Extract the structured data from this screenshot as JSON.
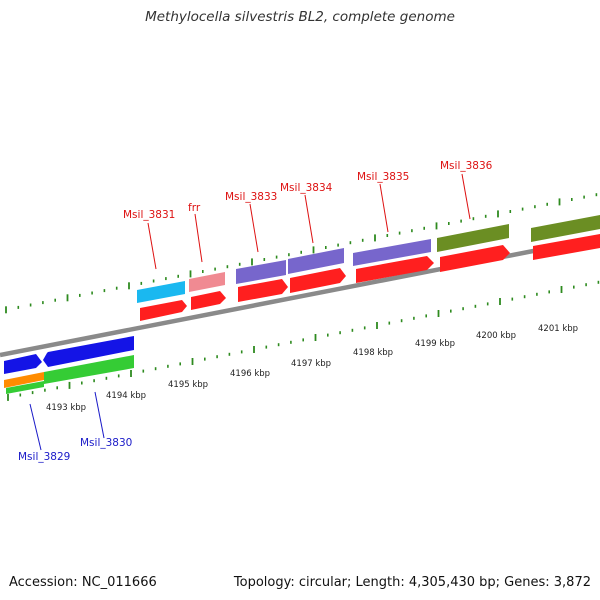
{
  "title": "Methylocella silvestris BL2, complete genome",
  "footer": {
    "accession": "Accession: NC_011666",
    "stats": "Topology: circular; Length: 4,305,430 bp; Genes: 3,872"
  },
  "colors": {
    "backbone": "#8a8a8a",
    "tick": "#2e8b1f",
    "label_top": "#dd1111",
    "label_bottom": "#1a1ac8",
    "gene_red": "#ff1f1f",
    "gene_blue": "#1414e6",
    "gene_green": "#35cc35",
    "gene_orange": "#ff8c00",
    "gene_cyan": "#1ab8f0",
    "gene_pink": "#f08a92",
    "gene_purple": "#7766cc",
    "gene_olive": "#6b8e23"
  },
  "scale_labels": [
    "4193 kbp",
    "4194 kbp",
    "4195 kbp",
    "4196 kbp",
    "4197 kbp",
    "4198 kbp",
    "4199 kbp",
    "4200 kbp",
    "4201 kbp"
  ],
  "gene_labels_top": [
    "Msil_3831",
    "frr",
    "Msil_3833",
    "Msil_3834",
    "Msil_3835",
    "Msil_3836"
  ],
  "gene_labels_bottom": [
    "Msil_3829",
    "Msil_3830"
  ]
}
